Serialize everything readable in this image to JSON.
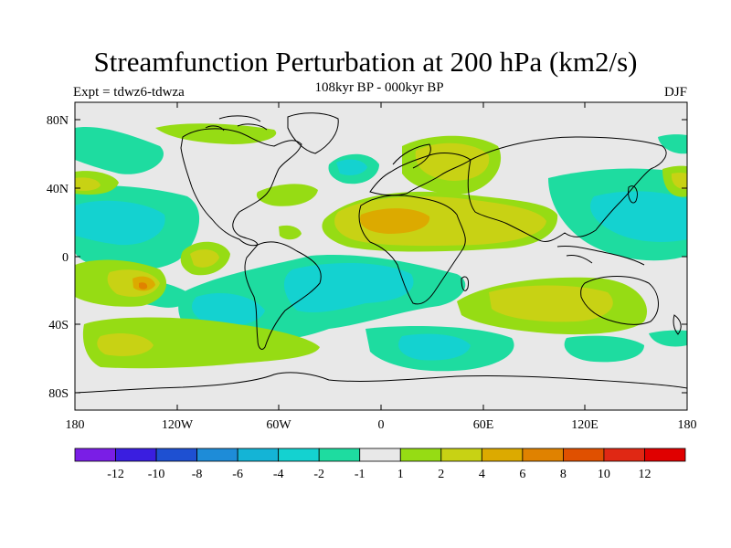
{
  "header": {
    "title": "Streamfunction Perturbation at 200 hPa (km2/s)",
    "subtitle": "108kyr BP - 000kyr BP",
    "left_label": "Expt = tdwz6-tdwza",
    "right_label": "DJF"
  },
  "axes": {
    "lat_labels": [
      "80N",
      "40N",
      "0",
      "40S",
      "80S"
    ],
    "lon_labels": [
      "180",
      "120W",
      "60W",
      "0",
      "60E",
      "120E",
      "180"
    ]
  },
  "colorbar": {
    "labels": [
      "-12",
      "-10",
      "-8",
      "-6",
      "-4",
      "-2",
      "-1",
      "1",
      "2",
      "4",
      "6",
      "8",
      "10",
      "12"
    ],
    "colors": [
      "#7a1ee6",
      "#3a1ee0",
      "#1e50d2",
      "#1e8cd8",
      "#14b4d6",
      "#14d2d0",
      "#1edca0",
      "#e8e8e8",
      "#96dc14",
      "#c8d214",
      "#dcaa00",
      "#e08200",
      "#e05000",
      "#e02814",
      "#e00000"
    ]
  },
  "map_colors": {
    "background": "#e8e8e8",
    "coast": "#000000"
  }
}
